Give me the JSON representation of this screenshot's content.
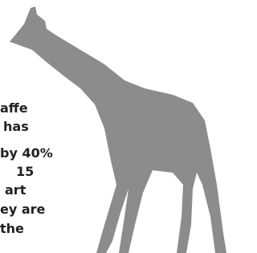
{
  "text_lines": [
    "affe",
    "has",
    "by 40%",
    "15",
    "art",
    "ey are",
    "the"
  ]
}
